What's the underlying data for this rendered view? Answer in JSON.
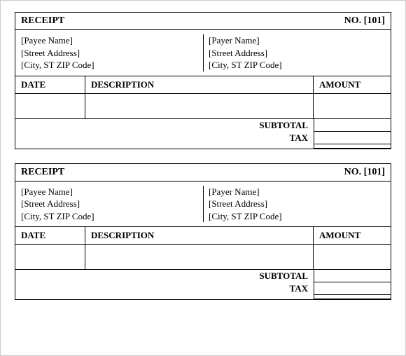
{
  "receipts": [
    {
      "title": "RECEIPT",
      "number_label": "NO. [101]",
      "payee": {
        "name": "[Payee Name]",
        "street": "[Street Address]",
        "city": "[City, ST  ZIP Code]"
      },
      "payer": {
        "name": "[Payer Name]",
        "street": "[Street Address]",
        "city": "[City, ST  ZIP Code]"
      },
      "columns": {
        "date": "DATE",
        "description": "DESCRIPTION",
        "amount": "AMOUNT"
      },
      "totals": {
        "subtotal": "SUBTOTAL",
        "tax": "TAX"
      }
    },
    {
      "title": "RECEIPT",
      "number_label": "NO. [101]",
      "payee": {
        "name": "[Payee Name]",
        "street": "[Street Address]",
        "city": "[City, ST  ZIP Code]"
      },
      "payer": {
        "name": "[Payer Name]",
        "street": "[Street Address]",
        "city": "[City, ST  ZIP Code]"
      },
      "columns": {
        "date": "DATE",
        "description": "DESCRIPTION",
        "amount": "AMOUNT"
      },
      "totals": {
        "subtotal": "SUBTOTAL",
        "tax": "TAX"
      }
    }
  ]
}
